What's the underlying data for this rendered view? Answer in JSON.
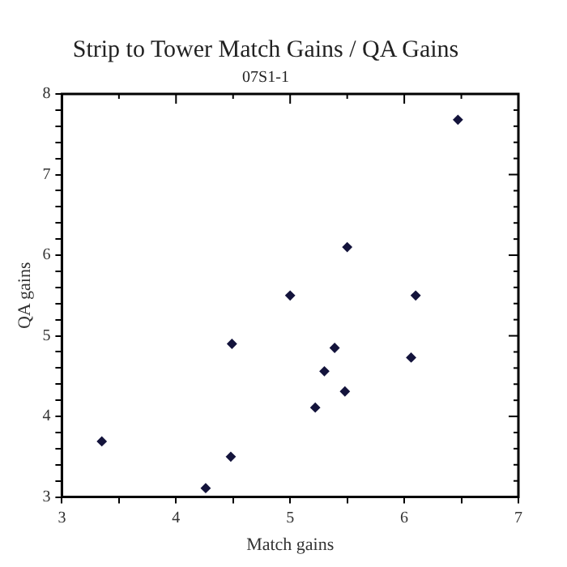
{
  "chart_data": {
    "type": "scatter",
    "title": "Strip to Tower Match Gains / QA Gains",
    "subtitle": "07S1-1",
    "xlabel": "Match gains",
    "ylabel": "QA gains",
    "series": [
      {
        "color": "#14143c",
        "x": [
          3.35,
          4.26,
          4.48,
          4.49,
          5.0,
          5.22,
          5.3,
          5.39,
          5.48,
          5.5,
          6.06,
          6.1,
          6.47
        ],
        "values": [
          3.69,
          3.11,
          3.5,
          4.9,
          5.5,
          4.11,
          4.56,
          4.85,
          4.31,
          6.1,
          4.73,
          5.5,
          7.68
        ]
      }
    ],
    "xlim": [
      3,
      7
    ],
    "xticks": [
      3,
      {
        "value": 3.5,
        "label": null
      },
      4,
      {
        "value": 4.5,
        "label": null
      },
      5,
      {
        "value": 5.5,
        "label": null
      },
      6,
      {
        "value": 6.5,
        "label": null
      },
      7
    ],
    "ylim": [
      3,
      8
    ],
    "yticks": [
      3,
      {
        "value": 3.2,
        "label": null
      },
      {
        "value": 3.4,
        "label": null
      },
      {
        "value": 3.6,
        "label": null
      },
      {
        "value": 3.8,
        "label": null
      },
      4,
      {
        "value": 4.2,
        "label": null
      },
      {
        "value": 4.4,
        "label": null
      },
      {
        "value": 4.6,
        "label": null
      },
      {
        "value": 4.8,
        "label": null
      },
      5,
      {
        "value": 5.2,
        "label": null
      },
      {
        "value": 5.4,
        "label": null
      },
      {
        "value": 5.6,
        "label": null
      },
      {
        "value": 5.8,
        "label": null
      },
      6,
      {
        "value": 6.2,
        "label": null
      },
      {
        "value": 6.4,
        "label": null
      },
      {
        "value": 6.6,
        "label": null
      },
      {
        "value": 6.8,
        "label": null
      },
      7,
      {
        "value": 7.2,
        "label": null
      },
      {
        "value": 7.4,
        "label": null
      },
      {
        "value": 7.6,
        "label": null
      },
      {
        "value": 7.8,
        "label": null
      },
      8
    ],
    "grid": false,
    "legend": false,
    "marker": "diamond"
  }
}
